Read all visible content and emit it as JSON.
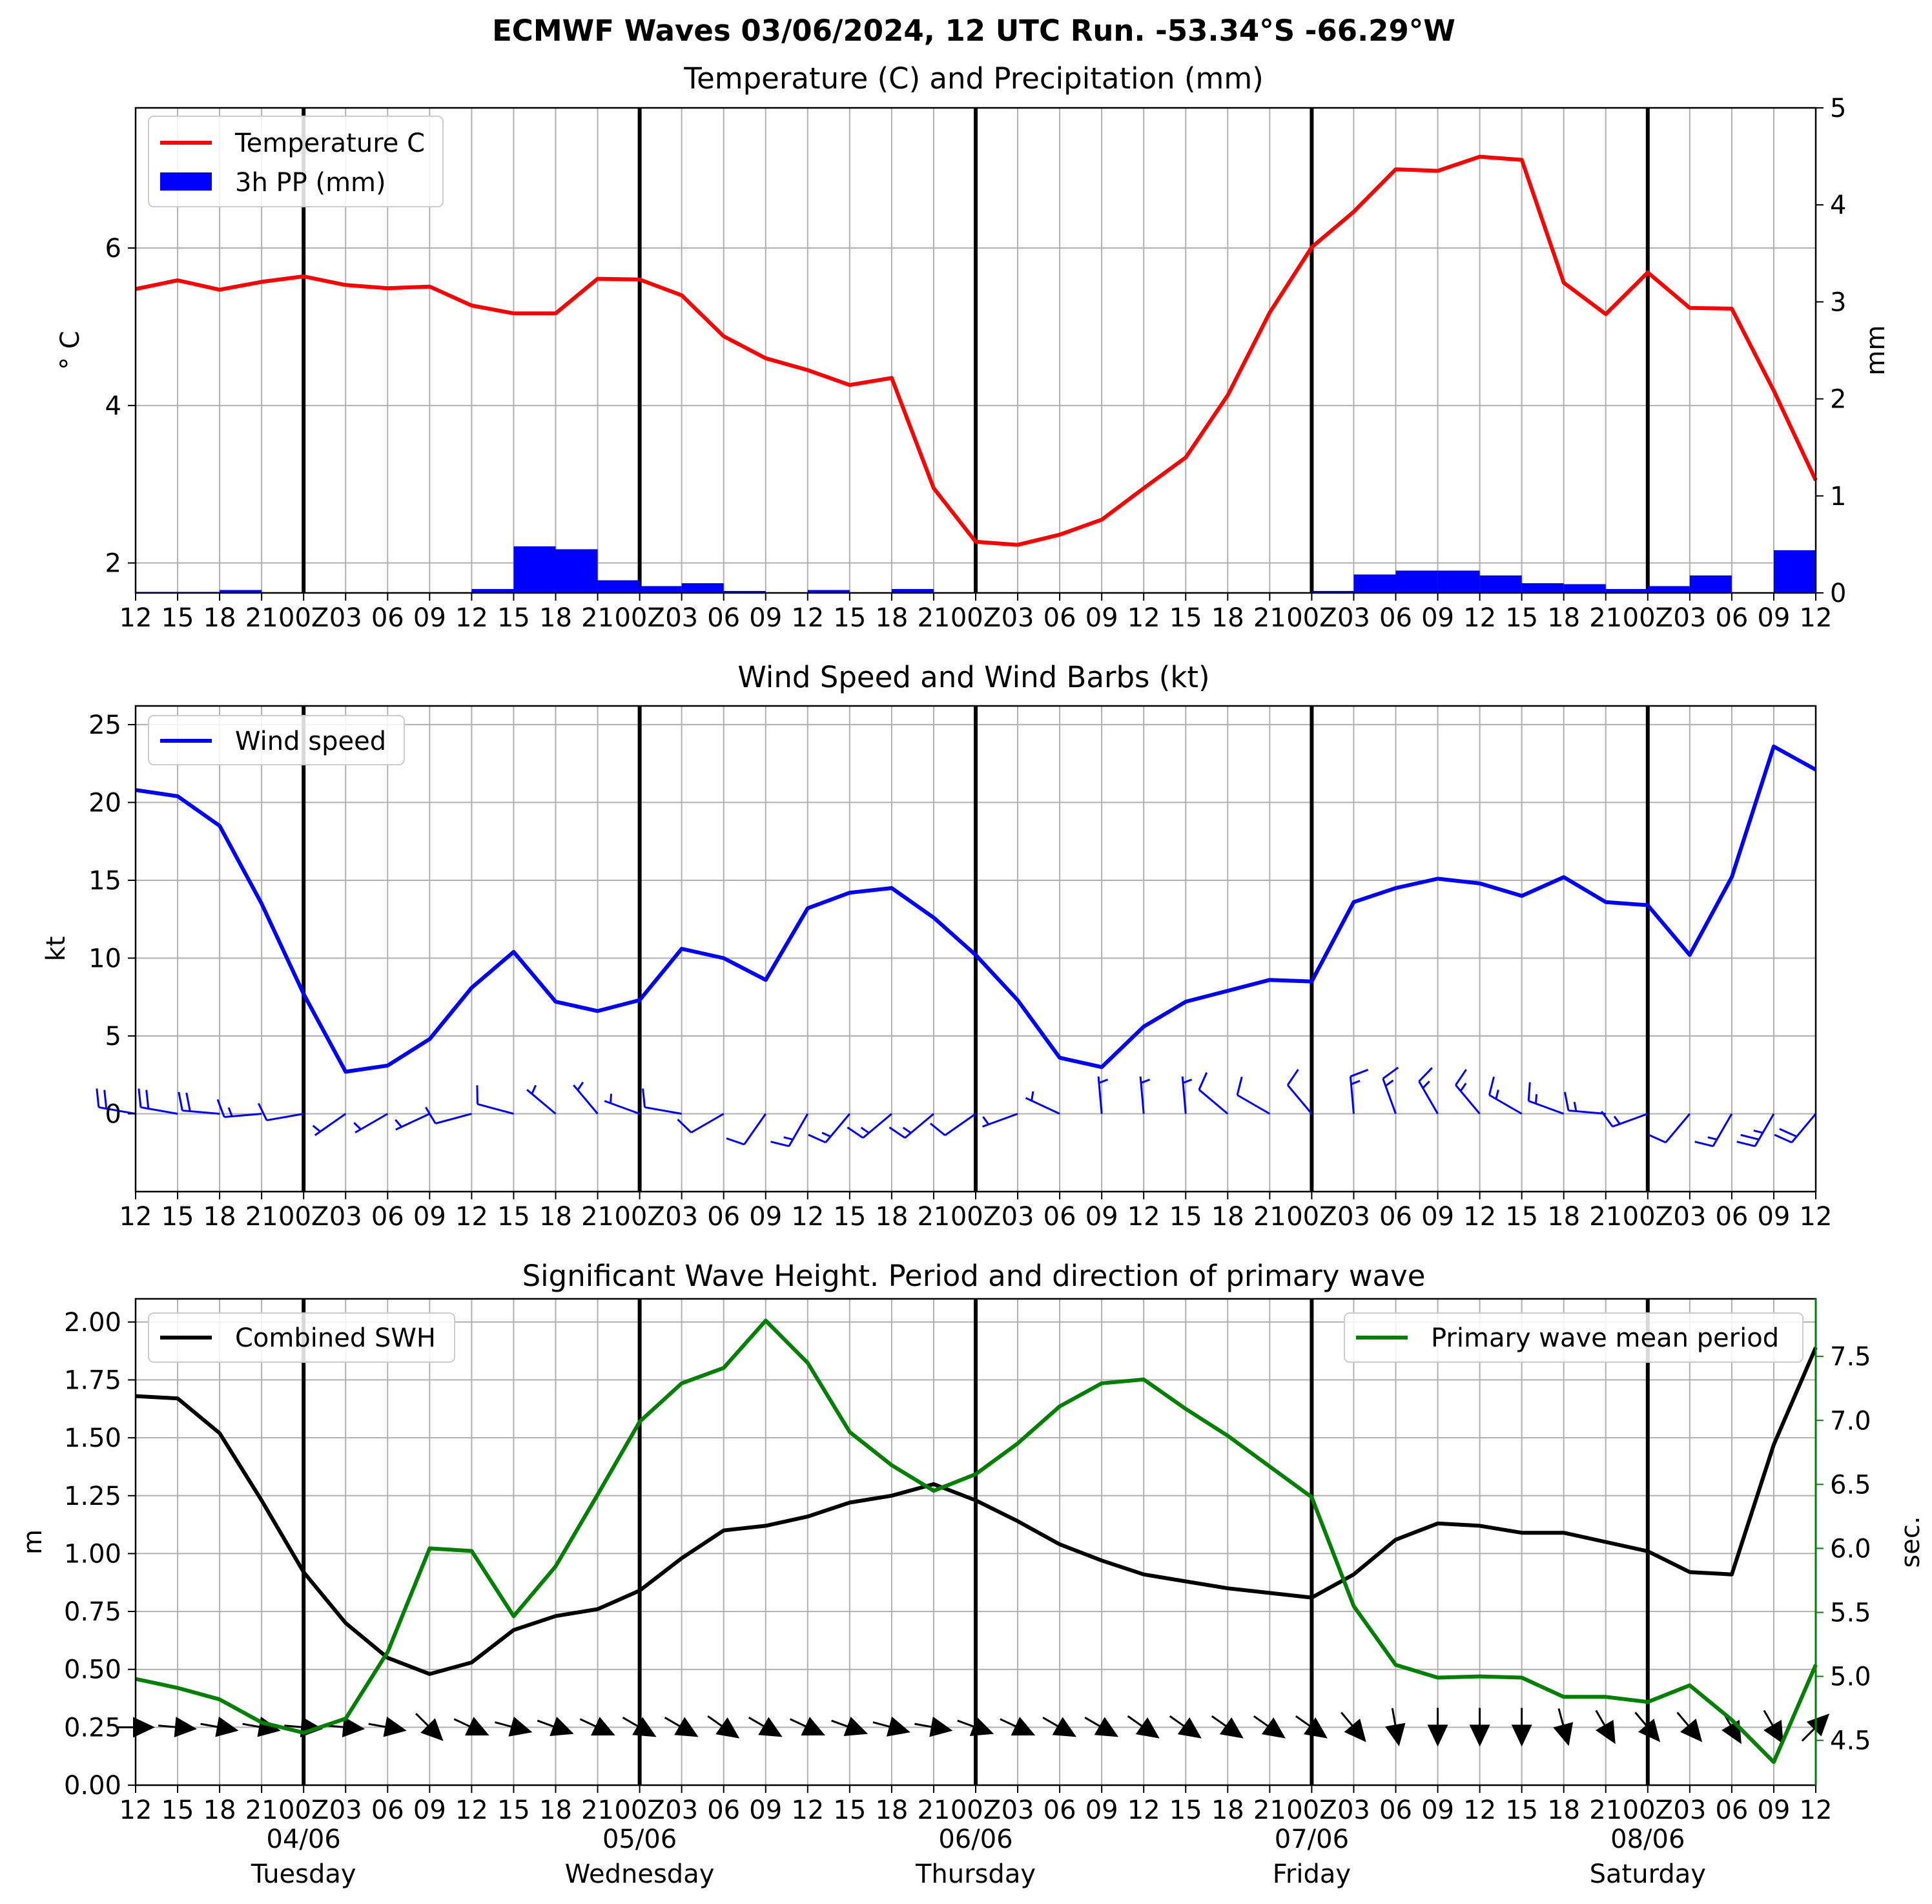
{
  "title": "ECMWF Waves 03/06/2024, 12 UTC Run. -53.34°S -66.29°W",
  "colors": {
    "temperature": "#ff0000",
    "precip": "#0000ff",
    "wind": "#0000ff",
    "swh": "#000000",
    "period": "#008000",
    "grid": "#b0b0b0"
  },
  "x_tick_labels": [
    "12",
    "15",
    "18",
    "21",
    "00Z",
    "03",
    "06",
    "09",
    "12",
    "15",
    "18",
    "21",
    "00Z",
    "03",
    "06",
    "09",
    "12",
    "15",
    "18",
    "21",
    "00Z",
    "03",
    "06",
    "09",
    "12",
    "15",
    "18",
    "21",
    "00Z",
    "03",
    "06",
    "09",
    "12",
    "15",
    "18",
    "21",
    "00Z",
    "03",
    "06",
    "09",
    "12"
  ],
  "day_labels": [
    {
      "date": "04/06",
      "day": "Tuesday",
      "index": 4
    },
    {
      "date": "05/06",
      "day": "Wednesday",
      "index": 12
    },
    {
      "date": "06/06",
      "day": "Thursday",
      "index": 20
    },
    {
      "date": "07/06",
      "day": "Friday",
      "index": 28
    },
    {
      "date": "08/06",
      "day": "Saturday",
      "index": 36
    }
  ],
  "chart_data": [
    {
      "type": "line",
      "title": "Temperature (C) and Precipitation (mm)",
      "ylabel": "° C",
      "y2label": "mm",
      "ylim": [
        1.62,
        7.78
      ],
      "y_ticks": [
        2,
        4,
        6
      ],
      "y2lim": [
        0,
        5
      ],
      "y2_ticks": [
        0,
        1,
        2,
        3,
        4,
        5
      ],
      "grid": true,
      "legend": "top-left",
      "series": [
        {
          "name": "Temperature C",
          "kind": "line",
          "axis": "left",
          "values": [
            5.48,
            5.59,
            5.47,
            5.57,
            5.64,
            5.53,
            5.49,
            5.51,
            5.27,
            5.17,
            5.17,
            5.61,
            5.6,
            5.4,
            4.88,
            4.6,
            4.45,
            4.26,
            4.35,
            2.95,
            2.27,
            2.23,
            2.36,
            2.55,
            2.95,
            3.34,
            4.13,
            5.18,
            6.01,
            6.46,
            7.0,
            6.98,
            7.16,
            7.12,
            5.56,
            5.16,
            5.69,
            5.24,
            5.23,
            4.19,
            3.05
          ]
        },
        {
          "name": "3h PP (mm)",
          "kind": "bar",
          "axis": "right",
          "values": [
            0.01,
            0.01,
            0.03,
            0,
            0,
            0,
            0,
            0,
            0.04,
            0.48,
            0.45,
            0.13,
            0.07,
            0.1,
            0.02,
            0,
            0.03,
            0,
            0.04,
            0,
            0,
            0,
            0,
            0,
            0,
            0,
            0,
            0,
            0.02,
            0.19,
            0.23,
            0.23,
            0.18,
            0.1,
            0.09,
            0.04,
            0.07,
            0.18,
            0,
            0.44
          ]
        }
      ]
    },
    {
      "type": "line",
      "title": "Wind Speed and Wind Barbs (kt)",
      "ylabel": "kt",
      "ylim": [
        -5,
        26.2
      ],
      "y_ticks": [
        0,
        5,
        10,
        15,
        20,
        25
      ],
      "grid": true,
      "legend": "top-left",
      "series": [
        {
          "name": "Wind speed",
          "values": [
            20.8,
            20.4,
            18.5,
            13.5,
            7.7,
            2.7,
            3.1,
            4.8,
            8.1,
            10.4,
            7.2,
            6.6,
            7.3,
            10.6,
            10.0,
            8.6,
            13.2,
            14.2,
            14.5,
            12.6,
            10.2,
            7.3,
            3.6,
            3.0,
            5.6,
            7.2,
            7.9,
            8.6,
            8.5,
            13.6,
            14.5,
            15.1,
            14.8,
            14.0,
            15.2,
            13.6,
            13.4,
            10.2,
            15.2,
            23.6,
            22.1
          ]
        }
      ],
      "wind_barb_direction_deg": [
        280,
        280,
        275,
        265,
        260,
        235,
        240,
        245,
        255,
        285,
        310,
        320,
        290,
        280,
        240,
        215,
        210,
        220,
        230,
        230,
        235,
        250,
        295,
        355,
        355,
        355,
        310,
        300,
        320,
        355,
        340,
        330,
        320,
        300,
        290,
        275,
        250,
        220,
        210,
        210,
        220
      ]
    },
    {
      "type": "line",
      "title": "Significant Wave Height. Period and direction of primary wave",
      "ylabel": "m",
      "y2label": "sec.",
      "ylim": [
        0,
        2.1
      ],
      "y_ticks": [
        0.0,
        0.25,
        0.5,
        0.75,
        1.0,
        1.25,
        1.5,
        1.75,
        2.0
      ],
      "y2lim": [
        4.15,
        7.95
      ],
      "y2_ticks": [
        4.5,
        5.0,
        5.5,
        6.0,
        6.5,
        7.0,
        7.5
      ],
      "grid": true,
      "series": [
        {
          "name": "Combined SWH",
          "axis": "left",
          "legend": "top-left",
          "values": [
            1.68,
            1.67,
            1.52,
            1.23,
            0.92,
            0.7,
            0.55,
            0.48,
            0.53,
            0.67,
            0.73,
            0.76,
            0.84,
            0.98,
            1.1,
            1.12,
            1.16,
            1.22,
            1.25,
            1.3,
            1.23,
            1.14,
            1.04,
            0.97,
            0.91,
            0.88,
            0.85,
            0.83,
            0.81,
            0.91,
            1.06,
            1.13,
            1.12,
            1.09,
            1.09,
            1.05,
            1.01,
            0.92,
            0.91,
            1.47,
            1.89
          ]
        },
        {
          "name": "Primary wave mean period",
          "axis": "right",
          "legend": "top-right",
          "values": [
            4.98,
            4.91,
            4.82,
            4.64,
            4.56,
            4.67,
            5.19,
            6.0,
            5.98,
            5.47,
            5.86,
            6.42,
            6.99,
            7.29,
            7.41,
            7.78,
            7.45,
            6.91,
            6.65,
            6.45,
            6.58,
            6.82,
            7.11,
            7.29,
            7.32,
            7.09,
            6.88,
            6.64,
            6.4,
            5.55,
            5.09,
            4.99,
            5.0,
            4.99,
            4.84,
            4.84,
            4.8,
            4.93,
            4.66,
            4.33,
            5.09
          ]
        }
      ],
      "wave_direction_arrow_deg": [
        90,
        95,
        100,
        100,
        95,
        95,
        100,
        135,
        115,
        105,
        110,
        115,
        120,
        120,
        125,
        120,
        115,
        110,
        105,
        100,
        110,
        115,
        120,
        120,
        125,
        125,
        125,
        125,
        125,
        140,
        170,
        180,
        180,
        180,
        165,
        150,
        140,
        140,
        150,
        150,
        45
      ]
    }
  ]
}
